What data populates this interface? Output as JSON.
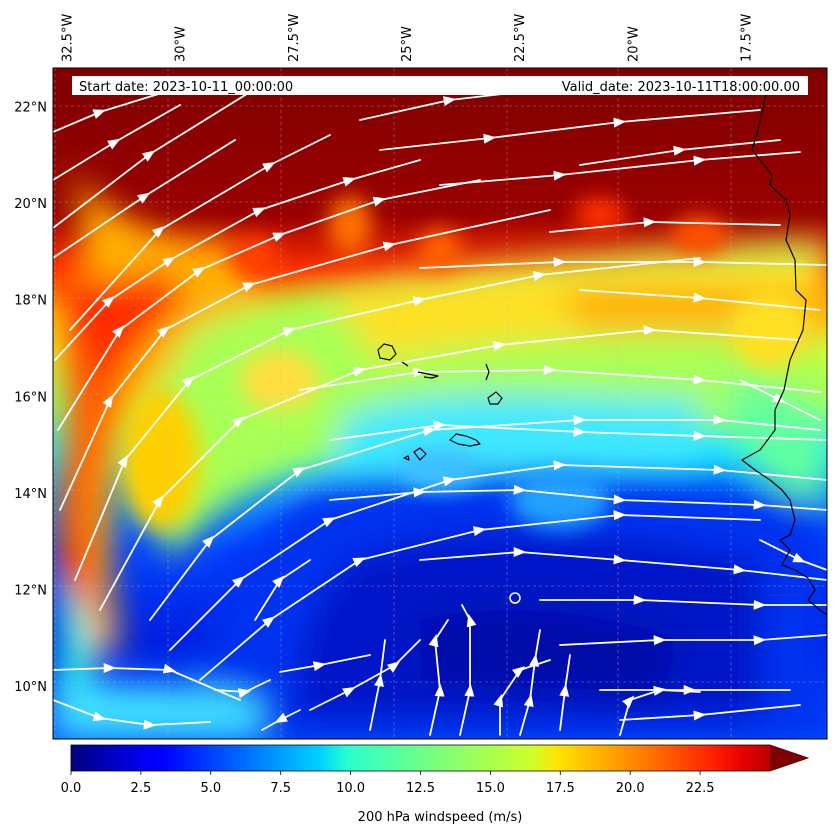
{
  "map": {
    "projection": "PlateCarree",
    "extent": {
      "lon": [
        -32.8,
        -15.7
      ],
      "lat": [
        8.9,
        22.8
      ]
    },
    "field": "200 hPa windspeed",
    "field_units": "m/s",
    "background_color_high": "#800000",
    "streamline_color": "#ffffff",
    "coastline_color": "#000000"
  },
  "header": {
    "start_date": "Start date: 2023-10-11_00:00:00",
    "valid_date": "Valid_date: 2023-10-11T18:00:00.00"
  },
  "lon_ticks": [
    {
      "value": -32.5,
      "label": "32.5°W"
    },
    {
      "value": -30.0,
      "label": "30°W"
    },
    {
      "value": -27.5,
      "label": "27.5°W"
    },
    {
      "value": -25.0,
      "label": "25°W"
    },
    {
      "value": -22.5,
      "label": "22.5°W"
    },
    {
      "value": -20.0,
      "label": "20°W"
    },
    {
      "value": -17.5,
      "label": "17.5°W"
    }
  ],
  "lat_ticks": [
    {
      "value": 22,
      "label": "22°N"
    },
    {
      "value": 20,
      "label": "20°N"
    },
    {
      "value": 18,
      "label": "18°N"
    },
    {
      "value": 16,
      "label": "16°N"
    },
    {
      "value": 14,
      "label": "14°N"
    },
    {
      "value": 12,
      "label": "12°N"
    },
    {
      "value": 10,
      "label": "10°N"
    }
  ],
  "colorbar": {
    "title": "200 hPa windspeed (m/s)",
    "colormap": "jet",
    "min": 0,
    "max": 25,
    "extend": "max",
    "ticks": [
      {
        "value": 0,
        "label": "0.0"
      },
      {
        "value": 2.5,
        "label": "2.5"
      },
      {
        "value": 5,
        "label": "5.0"
      },
      {
        "value": 7.5,
        "label": "7.5"
      },
      {
        "value": 10,
        "label": "10.0"
      },
      {
        "value": 12.5,
        "label": "12.5"
      },
      {
        "value": 15,
        "label": "15.0"
      },
      {
        "value": 17.5,
        "label": "17.5"
      },
      {
        "value": 20,
        "label": "20.0"
      },
      {
        "value": 22.5,
        "label": "22.5"
      }
    ]
  }
}
